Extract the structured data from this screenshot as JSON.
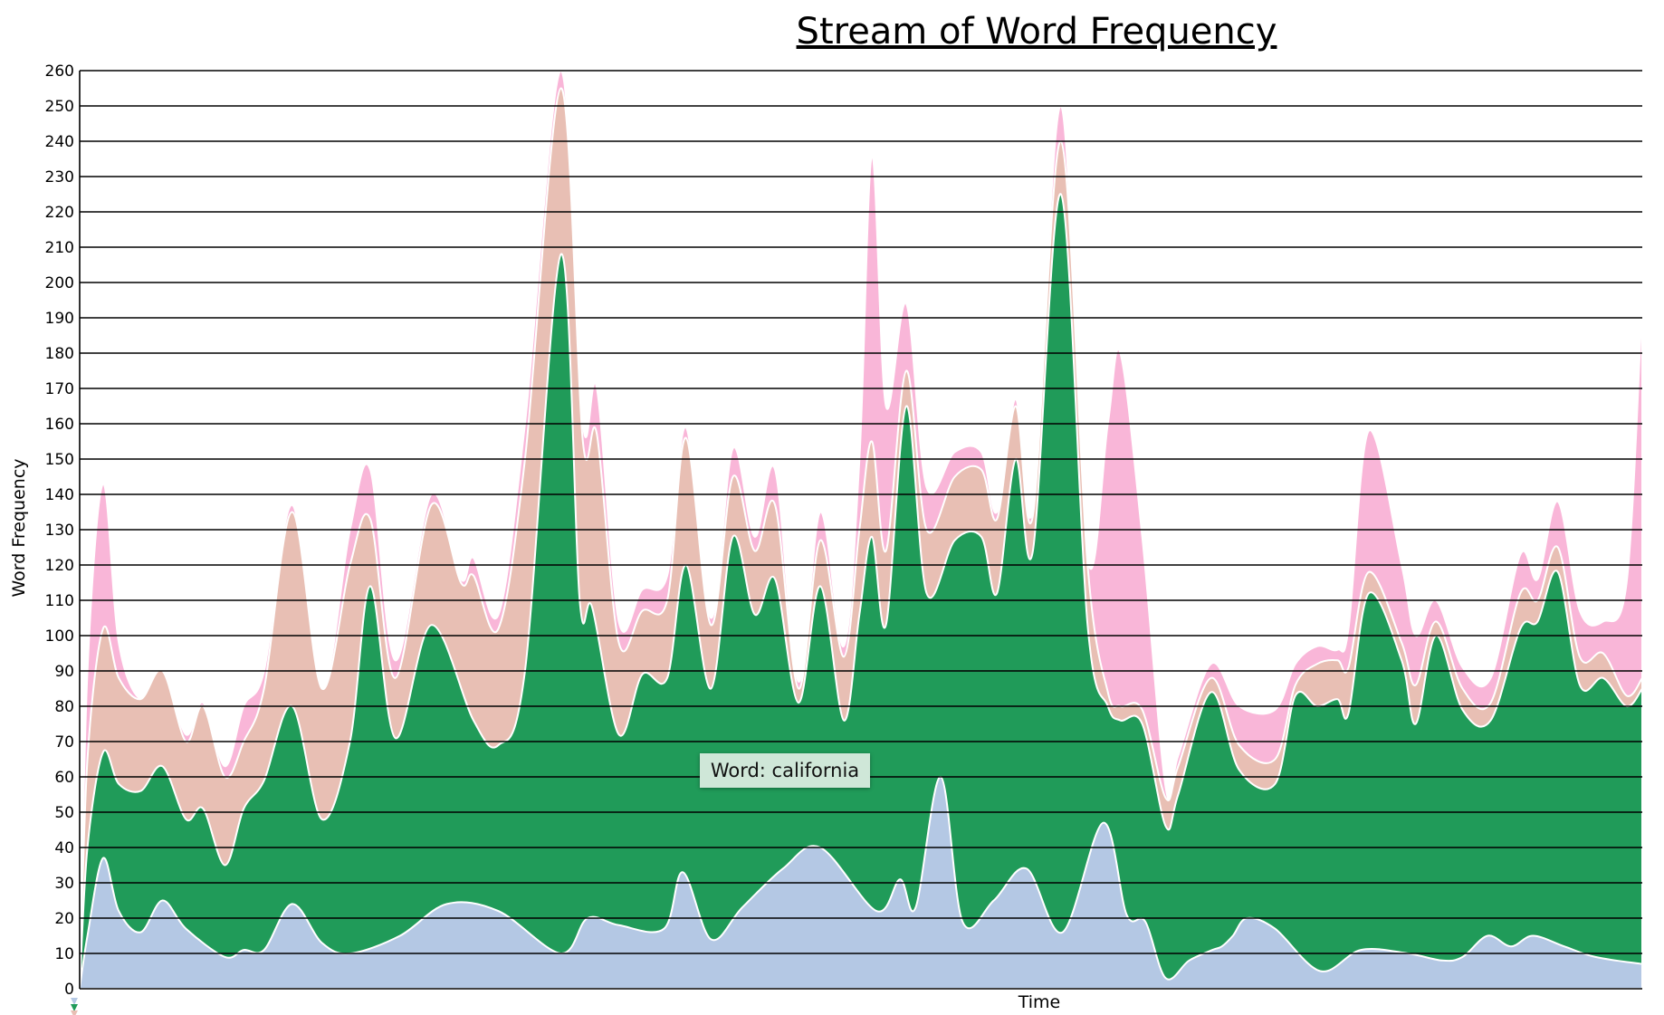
{
  "tooltip": {
    "text": "Word: california"
  },
  "chart_data": {
    "type": "area",
    "title": "Stream of Word Frequency",
    "xlabel": "Time",
    "ylabel": "Word Frequency",
    "ylim": [
      0,
      260
    ],
    "yticks": [
      0,
      10,
      20,
      30,
      40,
      50,
      60,
      70,
      80,
      90,
      100,
      110,
      120,
      130,
      140,
      150,
      160,
      170,
      180,
      190,
      200,
      210,
      220,
      230,
      240,
      250,
      260
    ],
    "grid": true,
    "stacked": true,
    "x_range": [
      0,
      100
    ],
    "series": [
      {
        "color": "#b4c8e4",
        "points": [
          [
            0,
            0
          ],
          [
            0.5,
            15
          ],
          [
            1.5,
            37
          ],
          [
            2.5,
            22
          ],
          [
            3.9,
            16
          ],
          [
            5.3,
            25
          ],
          [
            6.8,
            17
          ],
          [
            9.3,
            9
          ],
          [
            10.5,
            11
          ],
          [
            11.8,
            11
          ],
          [
            13.6,
            24
          ],
          [
            15.5,
            13
          ],
          [
            17.3,
            10
          ],
          [
            20.5,
            15
          ],
          [
            23.5,
            24
          ],
          [
            26.8,
            22
          ],
          [
            30.8,
            10
          ],
          [
            32.5,
            20
          ],
          [
            34.5,
            18
          ],
          [
            37.4,
            17
          ],
          [
            38.6,
            33
          ],
          [
            40.4,
            14
          ],
          [
            42.4,
            23
          ],
          [
            45,
            34
          ],
          [
            47.4,
            40
          ],
          [
            51,
            22
          ],
          [
            52.5,
            31
          ],
          [
            53.5,
            23
          ],
          [
            55.1,
            60
          ],
          [
            56.5,
            19
          ],
          [
            58.5,
            25
          ],
          [
            60.6,
            34
          ],
          [
            62.9,
            16
          ],
          [
            65.5,
            47
          ],
          [
            67,
            21
          ],
          [
            68.2,
            19
          ],
          [
            69.5,
            3
          ],
          [
            71,
            8
          ],
          [
            72.5,
            11
          ],
          [
            73.1,
            12
          ],
          [
            73.8,
            15
          ],
          [
            74.7,
            20
          ],
          [
            76.5,
            17
          ],
          [
            79.4,
            5
          ],
          [
            82,
            11
          ],
          [
            85,
            10
          ],
          [
            87.2,
            8
          ],
          [
            88.5,
            9
          ],
          [
            90.1,
            15
          ],
          [
            91.6,
            12
          ],
          [
            93,
            15
          ],
          [
            95,
            12
          ],
          [
            97,
            9
          ],
          [
            100,
            7
          ]
        ]
      },
      {
        "color": "#209b59",
        "points": [
          [
            0,
            0
          ],
          [
            0.5,
            40
          ],
          [
            1.5,
            67
          ],
          [
            2.5,
            58
          ],
          [
            3.9,
            56
          ],
          [
            5.3,
            63
          ],
          [
            6.8,
            48
          ],
          [
            7.9,
            51
          ],
          [
            9.3,
            35
          ],
          [
            10.5,
            51
          ],
          [
            11.8,
            59
          ],
          [
            13.6,
            80
          ],
          [
            15.5,
            48
          ],
          [
            17.3,
            70
          ],
          [
            18.6,
            114
          ],
          [
            20.2,
            71
          ],
          [
            22.5,
            103
          ],
          [
            25.2,
            76
          ],
          [
            26.8,
            69
          ],
          [
            28.5,
            90
          ],
          [
            30.8,
            208
          ],
          [
            32,
            110
          ],
          [
            32.8,
            108
          ],
          [
            34.5,
            72
          ],
          [
            36,
            89
          ],
          [
            37.6,
            88
          ],
          [
            38.8,
            120
          ],
          [
            40.4,
            85
          ],
          [
            41.8,
            128
          ],
          [
            43.2,
            106
          ],
          [
            44.5,
            116
          ],
          [
            46,
            81
          ],
          [
            47.4,
            114
          ],
          [
            48.9,
            76
          ],
          [
            49.9,
            106
          ],
          [
            50.7,
            128
          ],
          [
            51.6,
            103
          ],
          [
            52.9,
            165
          ],
          [
            54.2,
            112
          ],
          [
            56,
            127
          ],
          [
            57.7,
            128
          ],
          [
            58.7,
            112
          ],
          [
            59.9,
            150
          ],
          [
            61,
            124
          ],
          [
            62.8,
            225
          ],
          [
            64.5,
            103
          ],
          [
            65.8,
            80
          ],
          [
            66.6,
            76
          ],
          [
            68,
            75
          ],
          [
            69.5,
            46
          ],
          [
            70.3,
            55
          ],
          [
            72.4,
            84
          ],
          [
            74.2,
            62
          ],
          [
            76.5,
            58
          ],
          [
            77.8,
            83
          ],
          [
            79.2,
            80
          ],
          [
            80.5,
            82
          ],
          [
            81.2,
            78
          ],
          [
            82.5,
            112
          ],
          [
            84.6,
            93
          ],
          [
            85.5,
            75
          ],
          [
            86.8,
            100
          ],
          [
            88.5,
            79
          ],
          [
            90.3,
            76
          ],
          [
            92.2,
            102
          ],
          [
            93.3,
            104
          ],
          [
            94.6,
            118
          ],
          [
            96,
            86
          ],
          [
            97.5,
            88
          ],
          [
            99,
            80
          ],
          [
            100,
            85
          ]
        ]
      },
      {
        "color": "#e8bfb4",
        "points": [
          [
            0,
            0
          ],
          [
            0.5,
            65
          ],
          [
            1.5,
            102
          ],
          [
            2.5,
            88
          ],
          [
            3.9,
            82
          ],
          [
            5.3,
            90
          ],
          [
            6.8,
            70
          ],
          [
            7.9,
            80
          ],
          [
            9.3,
            60
          ],
          [
            10.5,
            70
          ],
          [
            11.8,
            85
          ],
          [
            13.6,
            135
          ],
          [
            15.5,
            85
          ],
          [
            17.3,
            120
          ],
          [
            18.6,
            133
          ],
          [
            20.2,
            88
          ],
          [
            22.5,
            137
          ],
          [
            24.4,
            115
          ],
          [
            25.2,
            117
          ],
          [
            26.8,
            102
          ],
          [
            28.5,
            150
          ],
          [
            30.8,
            255
          ],
          [
            32.2,
            155
          ],
          [
            33.1,
            157
          ],
          [
            34.5,
            98
          ],
          [
            36,
            107
          ],
          [
            37.6,
            110
          ],
          [
            38.8,
            156
          ],
          [
            40.4,
            103
          ],
          [
            41.8,
            145
          ],
          [
            43.2,
            124
          ],
          [
            44.5,
            137
          ],
          [
            46,
            85
          ],
          [
            47.4,
            127
          ],
          [
            48.9,
            94
          ],
          [
            49.9,
            130
          ],
          [
            50.7,
            155
          ],
          [
            51.6,
            124
          ],
          [
            52.9,
            175
          ],
          [
            54.2,
            130
          ],
          [
            56,
            145
          ],
          [
            57.7,
            147
          ],
          [
            58.7,
            133
          ],
          [
            59.9,
            165
          ],
          [
            61,
            134
          ],
          [
            62.8,
            240
          ],
          [
            64.5,
            120
          ],
          [
            65.8,
            84
          ],
          [
            66.6,
            80
          ],
          [
            68,
            79
          ],
          [
            69.5,
            54
          ],
          [
            70.3,
            63
          ],
          [
            72.4,
            88
          ],
          [
            74.2,
            69
          ],
          [
            76.5,
            65
          ],
          [
            77.8,
            86
          ],
          [
            79.2,
            92
          ],
          [
            80.5,
            93
          ],
          [
            81.2,
            91
          ],
          [
            82.5,
            118
          ],
          [
            84.6,
            98
          ],
          [
            85.5,
            86
          ],
          [
            86.8,
            104
          ],
          [
            88.5,
            85
          ],
          [
            90.3,
            81
          ],
          [
            92.2,
            112
          ],
          [
            93.3,
            110
          ],
          [
            94.6,
            125
          ],
          [
            96,
            94
          ],
          [
            97.5,
            95
          ],
          [
            99,
            83
          ],
          [
            100,
            88
          ]
        ]
      },
      {
        "color": "#f9b6d8",
        "points": [
          [
            0,
            0
          ],
          [
            0.5,
            90
          ],
          [
            1.5,
            143
          ],
          [
            2.5,
            98
          ],
          [
            3.9,
            82
          ],
          [
            5.3,
            90
          ],
          [
            6.8,
            72
          ],
          [
            7.9,
            81
          ],
          [
            9.3,
            63
          ],
          [
            10.5,
            80
          ],
          [
            11.8,
            90
          ],
          [
            13.6,
            137
          ],
          [
            15.5,
            85
          ],
          [
            17.3,
            130
          ],
          [
            18.6,
            147
          ],
          [
            20.2,
            93
          ],
          [
            22.5,
            140
          ],
          [
            24.4,
            116
          ],
          [
            25.2,
            122
          ],
          [
            26.8,
            106
          ],
          [
            28.5,
            160
          ],
          [
            30.8,
            260
          ],
          [
            32.2,
            160
          ],
          [
            33.1,
            170
          ],
          [
            34.5,
            104
          ],
          [
            36,
            113
          ],
          [
            37.6,
            117
          ],
          [
            38.8,
            159
          ],
          [
            40.4,
            105
          ],
          [
            41.8,
            153
          ],
          [
            43.2,
            128
          ],
          [
            44.5,
            147
          ],
          [
            46,
            87
          ],
          [
            47.4,
            135
          ],
          [
            48.9,
            97
          ],
          [
            49.9,
            150
          ],
          [
            50.7,
            236
          ],
          [
            51.6,
            165
          ],
          [
            52.9,
            194
          ],
          [
            54.2,
            142
          ],
          [
            56,
            152
          ],
          [
            57.7,
            152
          ],
          [
            58.7,
            135
          ],
          [
            59.9,
            167
          ],
          [
            61,
            136
          ],
          [
            62.8,
            250
          ],
          [
            64.5,
            122
          ],
          [
            65.8,
            160
          ],
          [
            66.6,
            180
          ],
          [
            68,
            128
          ],
          [
            69.5,
            57
          ],
          [
            70.3,
            66
          ],
          [
            72.4,
            92
          ],
          [
            74.2,
            80
          ],
          [
            76.5,
            79
          ],
          [
            77.8,
            92
          ],
          [
            79.2,
            97
          ],
          [
            80.5,
            96
          ],
          [
            81.2,
            102
          ],
          [
            82.5,
            158
          ],
          [
            84.6,
            120
          ],
          [
            85.5,
            100
          ],
          [
            86.8,
            110
          ],
          [
            88.5,
            91
          ],
          [
            90.3,
            88
          ],
          [
            92.2,
            123
          ],
          [
            93.3,
            116
          ],
          [
            94.6,
            138
          ],
          [
            96,
            107
          ],
          [
            97.5,
            104
          ],
          [
            99,
            115
          ],
          [
            100,
            195
          ]
        ]
      }
    ]
  }
}
